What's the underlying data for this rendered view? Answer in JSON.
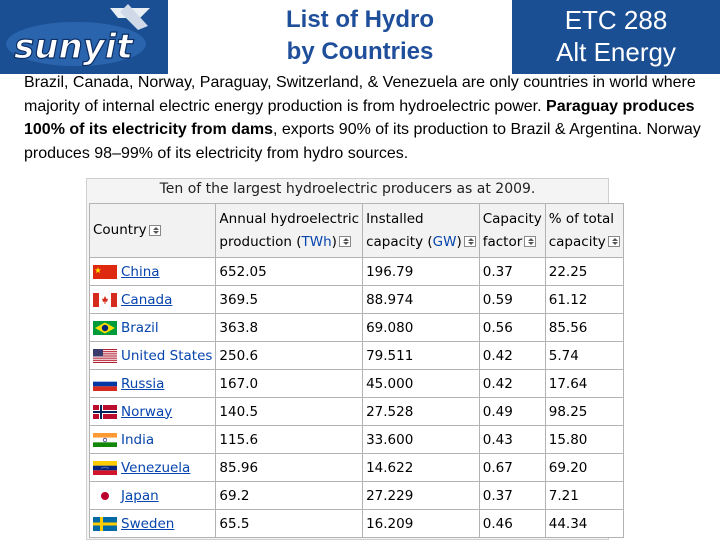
{
  "header": {
    "logo_text": "sunyit",
    "title_line1": "List of Hydro",
    "title_line2": "by Countries",
    "course_line1": "ETC 288",
    "course_line2": "Alt Energy"
  },
  "intro": {
    "sentence1": "Brazil, Canada, Norway, Paraguay, Switzerland, & Venezuela are only countries in world where majority of internal electric energy production is from hydroelectric power.",
    "sentence2_bold": "Paraguay produces 100% of its electricity from dams",
    "sentence2_rest": ", exports 90% of its production to Brazil & Argentina.   Norway produces 98–99% of its electricity from hydro sources."
  },
  "table": {
    "caption": "Ten of the largest hydroelectric producers as at 2009.",
    "headers": {
      "country": "Country",
      "production_line1": "Annual hydroelectric",
      "production_line2": "production (",
      "production_unit": "TWh",
      "production_close": ")",
      "capacity_line1": "Installed",
      "capacity_line2": "capacity (",
      "capacity_unit": "GW",
      "capacity_close": ")",
      "factor_line1": "Capacity",
      "factor_line2": "factor",
      "share_line1": "% of total",
      "share_line2": "capacity"
    },
    "rows": [
      {
        "country": "China",
        "production": "652.05",
        "capacity": "196.79",
        "factor": "0.37",
        "share": "22.25",
        "flag": "china-flag-icon"
      },
      {
        "country": "Canada",
        "production": "369.5",
        "capacity": "88.974",
        "factor": "0.59",
        "share": "61.12",
        "flag": "canada-flag-icon"
      },
      {
        "country": "Brazil",
        "production": "363.8",
        "capacity": "69.080",
        "factor": "0.56",
        "share": "85.56",
        "flag": "brazil-flag-icon"
      },
      {
        "country": "United States",
        "production": "250.6",
        "capacity": "79.511",
        "factor": "0.42",
        "share": "5.74",
        "flag": "usa-flag-icon"
      },
      {
        "country": "Russia",
        "production": "167.0",
        "capacity": "45.000",
        "factor": "0.42",
        "share": "17.64",
        "flag": "russia-flag-icon"
      },
      {
        "country": "Norway",
        "production": "140.5",
        "capacity": "27.528",
        "factor": "0.49",
        "share": "98.25",
        "flag": "norway-flag-icon"
      },
      {
        "country": "India",
        "production": "115.6",
        "capacity": "33.600",
        "factor": "0.43",
        "share": "15.80",
        "flag": "india-flag-icon"
      },
      {
        "country": "Venezuela",
        "production": "85.96",
        "capacity": "14.622",
        "factor": "0.67",
        "share": "69.20",
        "flag": "venezuela-flag-icon"
      },
      {
        "country": "Japan",
        "production": "69.2",
        "capacity": "27.229",
        "factor": "0.37",
        "share": "7.21",
        "flag": "japan-flag-icon"
      },
      {
        "country": "Sweden",
        "production": "65.5",
        "capacity": "16.209",
        "factor": "0.46",
        "share": "44.34",
        "flag": "sweden-flag-icon"
      }
    ]
  },
  "colors": {
    "brand_blue": "#1b4f93",
    "title_blue": "#1f4e9b",
    "link_blue": "#0645ad"
  }
}
